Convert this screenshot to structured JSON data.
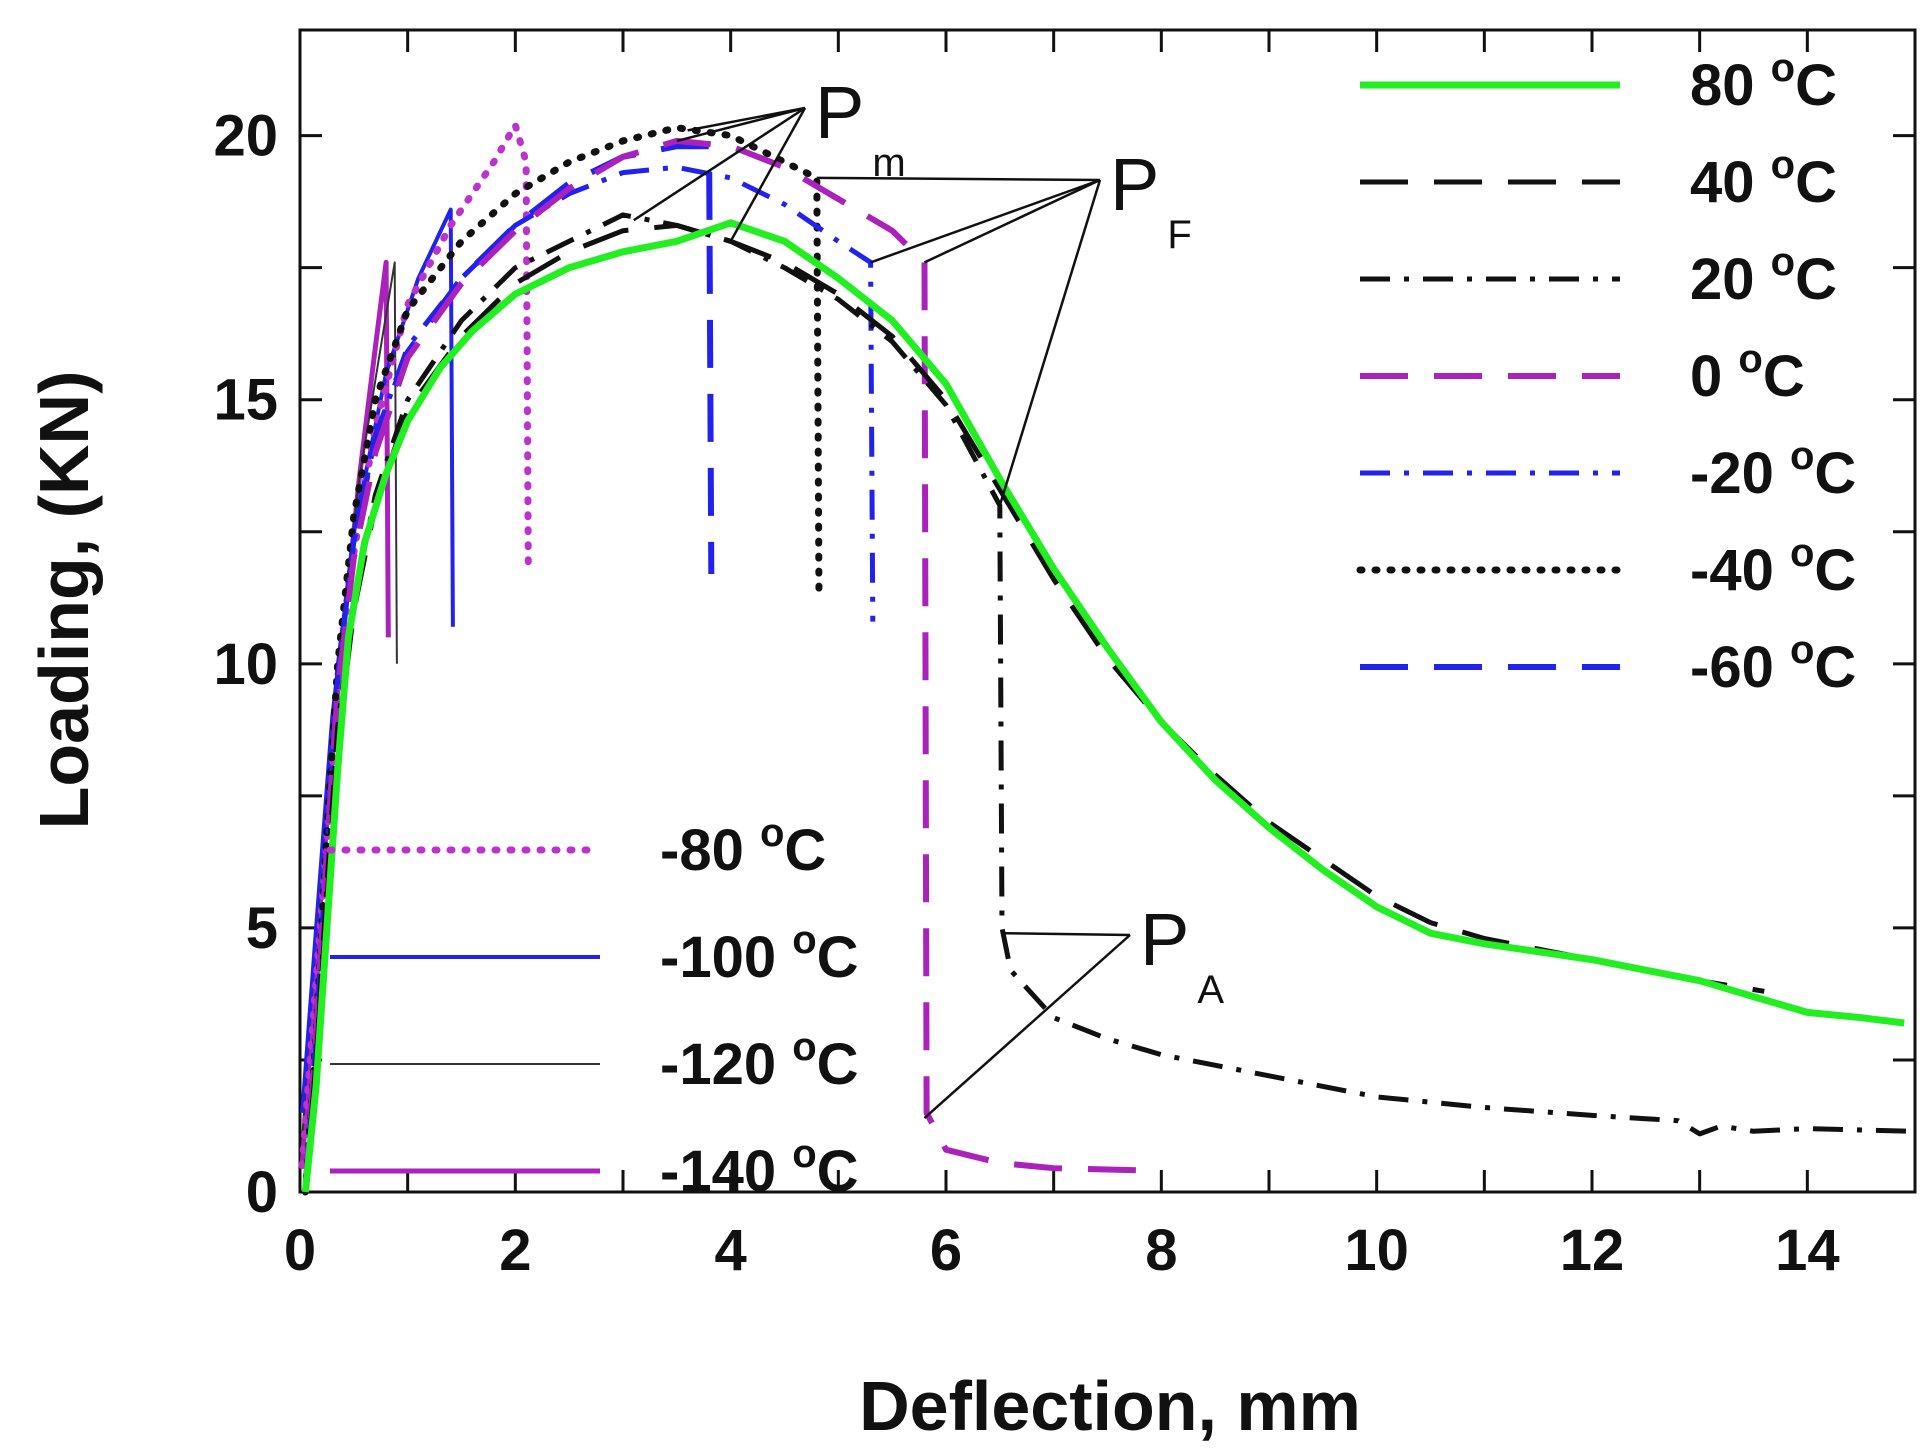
{
  "chart_data": {
    "type": "line",
    "title": "",
    "xlabel": "Deflection, mm",
    "ylabel": "Loading, (KN)",
    "xlim": [
      0,
      15
    ],
    "ylim": [
      0,
      22
    ],
    "xticks": [
      0,
      2,
      4,
      6,
      8,
      10,
      12,
      14
    ],
    "yticks": [
      0,
      5,
      10,
      15,
      20
    ],
    "degree_symbol": "o",
    "unit_letter": "C",
    "series": [
      {
        "name": "80",
        "color": "#22ee22",
        "dash": "solid",
        "width": 7,
        "points": [
          [
            0.05,
            0
          ],
          [
            0.15,
            2
          ],
          [
            0.25,
            5
          ],
          [
            0.35,
            8
          ],
          [
            0.45,
            10.5
          ],
          [
            0.6,
            12.3
          ],
          [
            0.8,
            13.6
          ],
          [
            1.0,
            14.6
          ],
          [
            1.3,
            15.6
          ],
          [
            1.6,
            16.3
          ],
          [
            2.0,
            17.0
          ],
          [
            2.5,
            17.5
          ],
          [
            3.0,
            17.8
          ],
          [
            3.5,
            18.0
          ],
          [
            4.0,
            18.35
          ],
          [
            4.5,
            18.0
          ],
          [
            5.0,
            17.3
          ],
          [
            5.5,
            16.5
          ],
          [
            6.0,
            15.3
          ],
          [
            6.5,
            13.5
          ],
          [
            7.0,
            11.8
          ],
          [
            7.5,
            10.3
          ],
          [
            8.0,
            8.9
          ],
          [
            8.5,
            7.8
          ],
          [
            9.0,
            6.9
          ],
          [
            9.5,
            6.1
          ],
          [
            10.0,
            5.4
          ],
          [
            10.5,
            4.9
          ],
          [
            11.0,
            4.7
          ],
          [
            12.0,
            4.4
          ],
          [
            12.5,
            4.2
          ],
          [
            13.0,
            4.0
          ],
          [
            13.5,
            3.7
          ],
          [
            14.0,
            3.4
          ],
          [
            14.5,
            3.3
          ],
          [
            14.9,
            3.2
          ]
        ]
      },
      {
        "name": "40",
        "color": "#111111",
        "dash": "long-dash",
        "width": 5,
        "points": [
          [
            0.05,
            0
          ],
          [
            0.15,
            2.5
          ],
          [
            0.25,
            5.5
          ],
          [
            0.35,
            8.5
          ],
          [
            0.5,
            11
          ],
          [
            0.7,
            13
          ],
          [
            1.0,
            14.8
          ],
          [
            1.5,
            16.2
          ],
          [
            2.0,
            17.2
          ],
          [
            2.5,
            17.8
          ],
          [
            3.0,
            18.2
          ],
          [
            3.5,
            18.3
          ],
          [
            4.0,
            18.0
          ],
          [
            4.5,
            17.6
          ],
          [
            5.0,
            17.0
          ],
          [
            5.5,
            16.2
          ],
          [
            6.0,
            15.0
          ],
          [
            6.5,
            13.3
          ],
          [
            7.0,
            11.6
          ],
          [
            7.5,
            10.1
          ],
          [
            8.0,
            8.9
          ],
          [
            8.5,
            7.9
          ],
          [
            9.0,
            7.0
          ],
          [
            9.5,
            6.3
          ],
          [
            10.0,
            5.6
          ],
          [
            10.5,
            5.1
          ],
          [
            11.0,
            4.8
          ],
          [
            12.0,
            4.4
          ],
          [
            12.5,
            4.2
          ],
          [
            13.0,
            4.0
          ],
          [
            13.6,
            3.8
          ]
        ]
      },
      {
        "name": "20",
        "color": "#111111",
        "dash": "dash-dot",
        "width": 5,
        "points": [
          [
            0.05,
            0
          ],
          [
            0.15,
            2.5
          ],
          [
            0.25,
            5.8
          ],
          [
            0.35,
            8.8
          ],
          [
            0.5,
            11.2
          ],
          [
            0.7,
            13.2
          ],
          [
            1.0,
            15.0
          ],
          [
            1.5,
            16.5
          ],
          [
            2.0,
            17.5
          ],
          [
            2.5,
            18.0
          ],
          [
            3.0,
            18.5
          ],
          [
            3.5,
            18.3
          ],
          [
            4.0,
            18.0
          ],
          [
            4.5,
            17.5
          ],
          [
            5.0,
            16.9
          ],
          [
            5.5,
            16.1
          ],
          [
            6.0,
            14.9
          ],
          [
            6.5,
            13.0
          ],
          [
            6.52,
            5.0
          ],
          [
            6.6,
            4.2
          ],
          [
            7.0,
            3.3
          ],
          [
            7.5,
            2.9
          ],
          [
            8.0,
            2.6
          ],
          [
            9.0,
            2.2
          ],
          [
            10.0,
            1.8
          ],
          [
            11.0,
            1.6
          ],
          [
            12.0,
            1.45
          ],
          [
            12.8,
            1.35
          ],
          [
            13.0,
            1.1
          ],
          [
            13.2,
            1.25
          ],
          [
            13.5,
            1.15
          ],
          [
            14.0,
            1.2
          ],
          [
            15.0,
            1.15
          ]
        ]
      },
      {
        "name": "0",
        "color": "#aa22bb",
        "dash": "long-dash",
        "width": 6,
        "points": [
          [
            0.05,
            0
          ],
          [
            0.15,
            3
          ],
          [
            0.25,
            6.5
          ],
          [
            0.35,
            9.5
          ],
          [
            0.5,
            12
          ],
          [
            0.7,
            14
          ],
          [
            1.0,
            15.8
          ],
          [
            1.5,
            17.2
          ],
          [
            2.0,
            18.2
          ],
          [
            2.5,
            19.0
          ],
          [
            3.0,
            19.6
          ],
          [
            3.5,
            19.9
          ],
          [
            4.0,
            19.8
          ],
          [
            4.5,
            19.4
          ],
          [
            5.0,
            18.8
          ],
          [
            5.5,
            18.2
          ],
          [
            5.8,
            17.6
          ],
          [
            5.82,
            1.5
          ],
          [
            6.0,
            0.8
          ],
          [
            6.5,
            0.55
          ],
          [
            7.0,
            0.45
          ],
          [
            8.0,
            0.4
          ]
        ]
      },
      {
        "name": "-20",
        "color": "#2222ee",
        "dash": "dash-dot",
        "width": 5,
        "points": [
          [
            0.05,
            0
          ],
          [
            0.15,
            3
          ],
          [
            0.25,
            6.5
          ],
          [
            0.35,
            9.8
          ],
          [
            0.5,
            12.3
          ],
          [
            0.7,
            14.3
          ],
          [
            1.0,
            16.0
          ],
          [
            1.5,
            17.3
          ],
          [
            2.0,
            18.3
          ],
          [
            2.5,
            18.9
          ],
          [
            3.0,
            19.3
          ],
          [
            3.5,
            19.4
          ],
          [
            4.0,
            19.2
          ],
          [
            4.5,
            18.7
          ],
          [
            5.0,
            18.0
          ],
          [
            5.3,
            17.6
          ],
          [
            5.32,
            10.8
          ]
        ]
      },
      {
        "name": "-40",
        "color": "#111111",
        "dash": "dotted",
        "width": 7,
        "points": [
          [
            0.05,
            0
          ],
          [
            0.15,
            3
          ],
          [
            0.25,
            6.8
          ],
          [
            0.35,
            10
          ],
          [
            0.5,
            12.8
          ],
          [
            0.7,
            15.0
          ],
          [
            1.0,
            16.7
          ],
          [
            1.5,
            18.0
          ],
          [
            2.0,
            18.9
          ],
          [
            2.5,
            19.5
          ],
          [
            3.0,
            19.9
          ],
          [
            3.5,
            20.15
          ],
          [
            4.0,
            20.0
          ],
          [
            4.5,
            19.5
          ],
          [
            4.8,
            19.2
          ],
          [
            4.82,
            11.2
          ]
        ]
      },
      {
        "name": "-60",
        "color": "#2222ee",
        "dash": "long-dash",
        "width": 6,
        "points": [
          [
            0.05,
            0
          ],
          [
            0.15,
            3
          ],
          [
            0.25,
            6.5
          ],
          [
            0.35,
            9.8
          ],
          [
            0.5,
            12.3
          ],
          [
            0.7,
            14.3
          ],
          [
            1.0,
            15.9
          ],
          [
            1.5,
            17.3
          ],
          [
            2.0,
            18.3
          ],
          [
            2.5,
            19.1
          ],
          [
            3.0,
            19.6
          ],
          [
            3.5,
            19.8
          ],
          [
            3.8,
            19.8
          ],
          [
            3.82,
            11.7
          ]
        ]
      },
      {
        "name": "-80",
        "color": "#bb33cc",
        "dash": "dotted",
        "width": 7,
        "points": [
          [
            0.02,
            0.5
          ],
          [
            0.15,
            4
          ],
          [
            0.3,
            8
          ],
          [
            0.45,
            11.5
          ],
          [
            0.7,
            14.5
          ],
          [
            1.0,
            16.8
          ],
          [
            1.4,
            18.3
          ],
          [
            1.8,
            19.5
          ],
          [
            2.0,
            20.2
          ],
          [
            2.1,
            19.5
          ],
          [
            2.12,
            11.8
          ]
        ]
      },
      {
        "name": "-100",
        "color": "#2222ee",
        "dash": "solid",
        "width": 4,
        "points": [
          [
            0.02,
            1.5
          ],
          [
            0.15,
            5
          ],
          [
            0.3,
            9
          ],
          [
            0.5,
            12.5
          ],
          [
            0.8,
            15.5
          ],
          [
            1.1,
            17.3
          ],
          [
            1.4,
            18.6
          ],
          [
            1.42,
            10.7
          ]
        ]
      },
      {
        "name": "-120",
        "color": "#333333",
        "dash": "solid",
        "width": 2,
        "points": [
          [
            0.02,
            1.0
          ],
          [
            0.15,
            5
          ],
          [
            0.35,
            10
          ],
          [
            0.55,
            13.5
          ],
          [
            0.75,
            16.0
          ],
          [
            0.88,
            17.6
          ],
          [
            0.9,
            10.0
          ]
        ]
      },
      {
        "name": "-140",
        "color": "#aa22bb",
        "dash": "solid",
        "width": 5,
        "points": [
          [
            0.02,
            0.5
          ],
          [
            0.15,
            4.5
          ],
          [
            0.35,
            9.5
          ],
          [
            0.55,
            13.5
          ],
          [
            0.7,
            16.0
          ],
          [
            0.8,
            17.6
          ],
          [
            0.82,
            10.5
          ]
        ]
      }
    ],
    "annotations": [
      {
        "label": "P",
        "subscript": "m",
        "targets": [
          [
            3.1,
            18.4
          ],
          [
            3.5,
            19.9
          ],
          [
            3.6,
            20.1
          ],
          [
            4.0,
            18.0
          ]
        ]
      },
      {
        "label": "P",
        "subscript": "F",
        "targets": [
          [
            4.8,
            19.2
          ],
          [
            5.3,
            17.6
          ],
          [
            5.8,
            17.6
          ],
          [
            6.5,
            13.0
          ]
        ]
      },
      {
        "label": "P",
        "subscript": "A",
        "targets": [
          [
            6.55,
            4.9
          ],
          [
            5.8,
            1.4
          ]
        ]
      }
    ]
  }
}
